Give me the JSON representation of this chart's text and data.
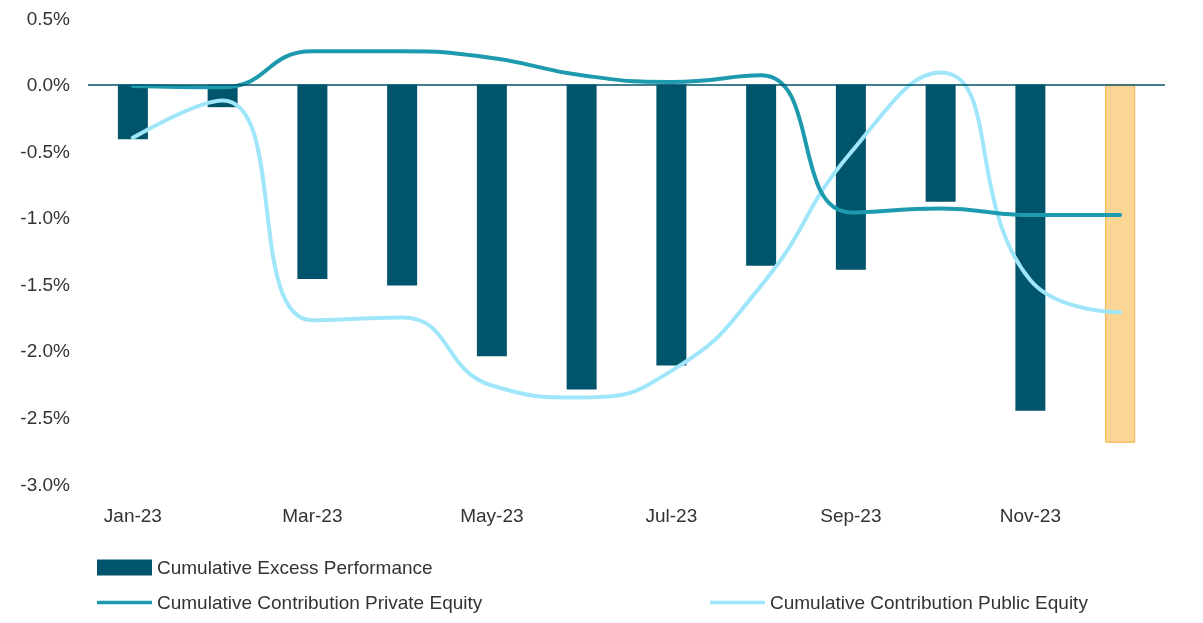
{
  "chart_data": {
    "type": "bar",
    "categories": [
      "Jan-23",
      null,
      "Mar-23",
      null,
      "May-23",
      null,
      "Jul-23",
      null,
      "Sep-23",
      null,
      "Nov-23",
      null
    ],
    "series": [
      {
        "name": "Cumulative Excess Performance",
        "color": "#00546b",
        "colors": [
          "#00546b",
          "#00546b",
          "#00546b",
          "#00546b",
          "#00546b",
          "#00546b",
          "#00546b",
          "#00546b",
          "#00546b",
          "#00546b",
          "#00546b",
          "#fbd593"
        ],
        "values": [
          -0.41,
          -0.17,
          -1.46,
          -1.51,
          -2.04,
          -2.29,
          -2.11,
          -1.36,
          -1.39,
          -0.88,
          -2.45,
          -2.69
        ]
      },
      {
        "name": "Cumulative Contribution Public Equity",
        "type": "line",
        "color": "#a0e6fa",
        "values": [
          -0.4,
          -0.12,
          -1.77,
          -1.75,
          -2.26,
          -2.35,
          -2.15,
          -1.51,
          -0.51,
          0.09,
          -1.47,
          -1.71
        ]
      },
      {
        "name": "Cumulative Contribution Private Equity",
        "type": "line",
        "color": "#1e9aaf",
        "values": [
          -0.01,
          -0.02,
          0.25,
          0.25,
          0.2,
          0.07,
          0.02,
          0.07,
          -0.96,
          -0.93,
          -0.98,
          -0.98
        ]
      }
    ],
    "ylim": [
      -3.0,
      0.5
    ],
    "yticks": [
      {
        "value": 0.5,
        "label": "0.5%"
      },
      {
        "value": 0,
        "label": "0.0%"
      },
      {
        "value": -0.5,
        "label": "-0.5%"
      },
      {
        "value": -1,
        "label": "-1.0%"
      },
      {
        "value": -1.5,
        "label": "-1.5%"
      },
      {
        "value": -2,
        "label": "-2.0%"
      },
      {
        "value": -2.5,
        "label": "-2.5%"
      },
      {
        "value": -3,
        "label": "-3.0%"
      }
    ],
    "ref_lines": [
      {
        "axis": "y",
        "value": 0,
        "color": "#00546b"
      }
    ],
    "grid": false,
    "legend": "bottom",
    "marker": "none",
    "line_style": "solid"
  }
}
